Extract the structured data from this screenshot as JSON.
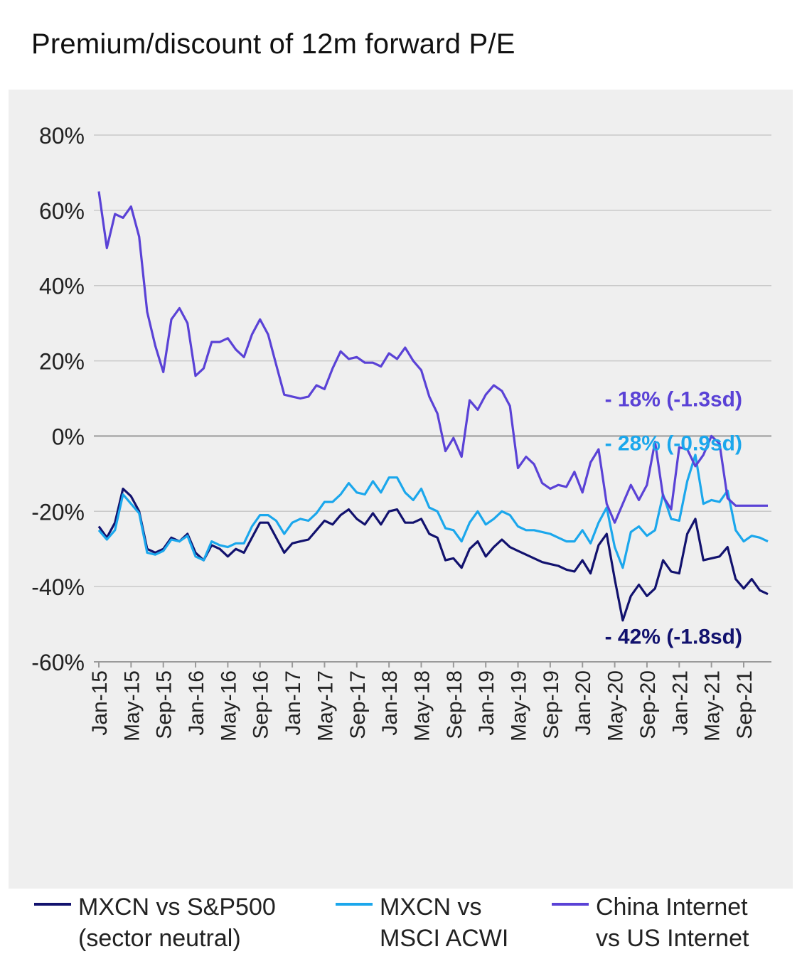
{
  "title": "Premium/discount of 12m forward P/E",
  "chart_data": {
    "type": "line",
    "title": "Premium/discount of 12m forward P/E",
    "xlabel": "",
    "ylabel": "",
    "ylim": [
      -60,
      80
    ],
    "y_ticks": [
      80,
      60,
      40,
      20,
      0,
      -20,
      -40,
      -60
    ],
    "y_tick_labels": [
      "80%",
      "60%",
      "40%",
      "20%",
      "0%",
      "-20%",
      "-40%",
      "-60%"
    ],
    "x_tick_labels": [
      "Jan-15",
      "May-15",
      "Sep-15",
      "Jan-16",
      "May-16",
      "Sep-16",
      "Jan-17",
      "May-17",
      "Sep-17",
      "Jan-18",
      "May-18",
      "Sep-18",
      "Jan-19",
      "May-19",
      "Sep-19",
      "Jan-20",
      "May-20",
      "Sep-20",
      "Jan-21",
      "May-21",
      "Sep-21"
    ],
    "gridlines": true,
    "x_start": "Jan-15",
    "x_end": "Nov-21",
    "series": [
      {
        "name": "MXCN vs S&P500 (sector neutral)",
        "color": "#12126e",
        "values": [
          -24,
          -27,
          -23,
          -14,
          -16,
          -20,
          -30,
          -31,
          -30,
          -27,
          -28,
          -26,
          -31,
          -33,
          -29,
          -30,
          -32,
          -30,
          -31,
          -27,
          -23,
          -23,
          -27,
          -31,
          -28.5,
          -28,
          -27.5,
          -25,
          -22.5,
          -23.5,
          -21,
          -19.5,
          -22,
          -23.5,
          -20.5,
          -23.5,
          -20,
          -19.5,
          -23,
          -23,
          -22,
          -26,
          -27,
          -33,
          -32.5,
          -35,
          -30,
          -28,
          -32,
          -29.5,
          -27.5,
          -29.5,
          -30.5,
          -31.5,
          -32.5,
          -33.5,
          -34,
          -34.5,
          -35.5,
          -36,
          -33,
          -36.5,
          -29,
          -26,
          -38,
          -49,
          -42.5,
          -39.5,
          -42.5,
          -40.5,
          -33,
          -36,
          -36.5,
          -26,
          -22,
          -33,
          -32.5,
          -32,
          -29.5,
          -38,
          -40.5,
          -38,
          -41,
          -42
        ]
      },
      {
        "name": "MXCN vs MSCI ACWI",
        "color": "#1ba7ec",
        "values": [
          -25,
          -27.5,
          -25,
          -15.5,
          -18,
          -20.5,
          -31,
          -31.5,
          -30.5,
          -27.5,
          -28,
          -26.5,
          -32,
          -33,
          -28,
          -29,
          -29.5,
          -28.5,
          -28.5,
          -24,
          -21,
          -21,
          -22.5,
          -26,
          -23,
          -22,
          -22.5,
          -20.5,
          -17.5,
          -17.5,
          -15.5,
          -12.5,
          -15,
          -15.5,
          -12,
          -15,
          -11,
          -11,
          -15,
          -17,
          -14,
          -19,
          -20,
          -24.5,
          -25,
          -28,
          -23,
          -20,
          -23.5,
          -22,
          -20,
          -21,
          -24,
          -25,
          -25,
          -25.5,
          -26,
          -27,
          -28,
          -28,
          -25,
          -28.5,
          -23,
          -19,
          -29.5,
          -35,
          -25.5,
          -24,
          -26.5,
          -25,
          -15.5,
          -22,
          -22.5,
          -12,
          -5,
          -18,
          -17,
          -17.5,
          -14.5,
          -25,
          -28,
          -26.5,
          -27,
          -28
        ]
      },
      {
        "name": "China Internet vs US Internet",
        "color": "#5a42d6",
        "values": [
          65,
          50,
          59,
          58,
          61,
          53,
          33,
          24,
          17,
          31,
          34,
          30,
          16,
          18,
          25,
          25,
          26,
          23,
          21,
          27,
          31,
          27,
          19,
          11,
          10.5,
          10,
          10.5,
          13.5,
          12.5,
          18,
          22.5,
          20.5,
          21,
          19.5,
          19.5,
          18.5,
          22,
          20.5,
          23.5,
          20,
          17.5,
          10.5,
          6,
          -4,
          -0.5,
          -5.5,
          9.5,
          7,
          11,
          13.5,
          12,
          8,
          -8.5,
          -5.5,
          -7.5,
          -12.5,
          -14,
          -13,
          -13.5,
          -9.5,
          -15,
          -7,
          -3.5,
          -18,
          -23,
          -18,
          -13,
          -17,
          -13,
          -1.5,
          -16,
          -19.5,
          -3,
          -3.5,
          -8,
          -5,
          0,
          -2,
          -16.5,
          -18.5,
          -18.5,
          -18.5,
          -18.5,
          -18.5
        ]
      }
    ],
    "annotations": [
      {
        "text": "- 18% (-1.3sd)",
        "series": "China Internet vs US Internet",
        "color": "#5a42d6"
      },
      {
        "text": "- 28% (-0.9sd)",
        "series": "MXCN vs MSCI ACWI",
        "color": "#1ba7ec"
      },
      {
        "text": "- 42% (-1.8sd)",
        "series": "MXCN vs S&P500 (sector neutral)",
        "color": "#12126e"
      }
    ],
    "legend_position": "bottom"
  },
  "legend": [
    {
      "label": "MXCN vs S&P500\n(sector neutral)",
      "color": "#12126e"
    },
    {
      "label": "MXCN vs\nMSCI ACWI",
      "color": "#1ba7ec"
    },
    {
      "label": "China Internet\nvs US Internet",
      "color": "#5a42d6"
    }
  ]
}
